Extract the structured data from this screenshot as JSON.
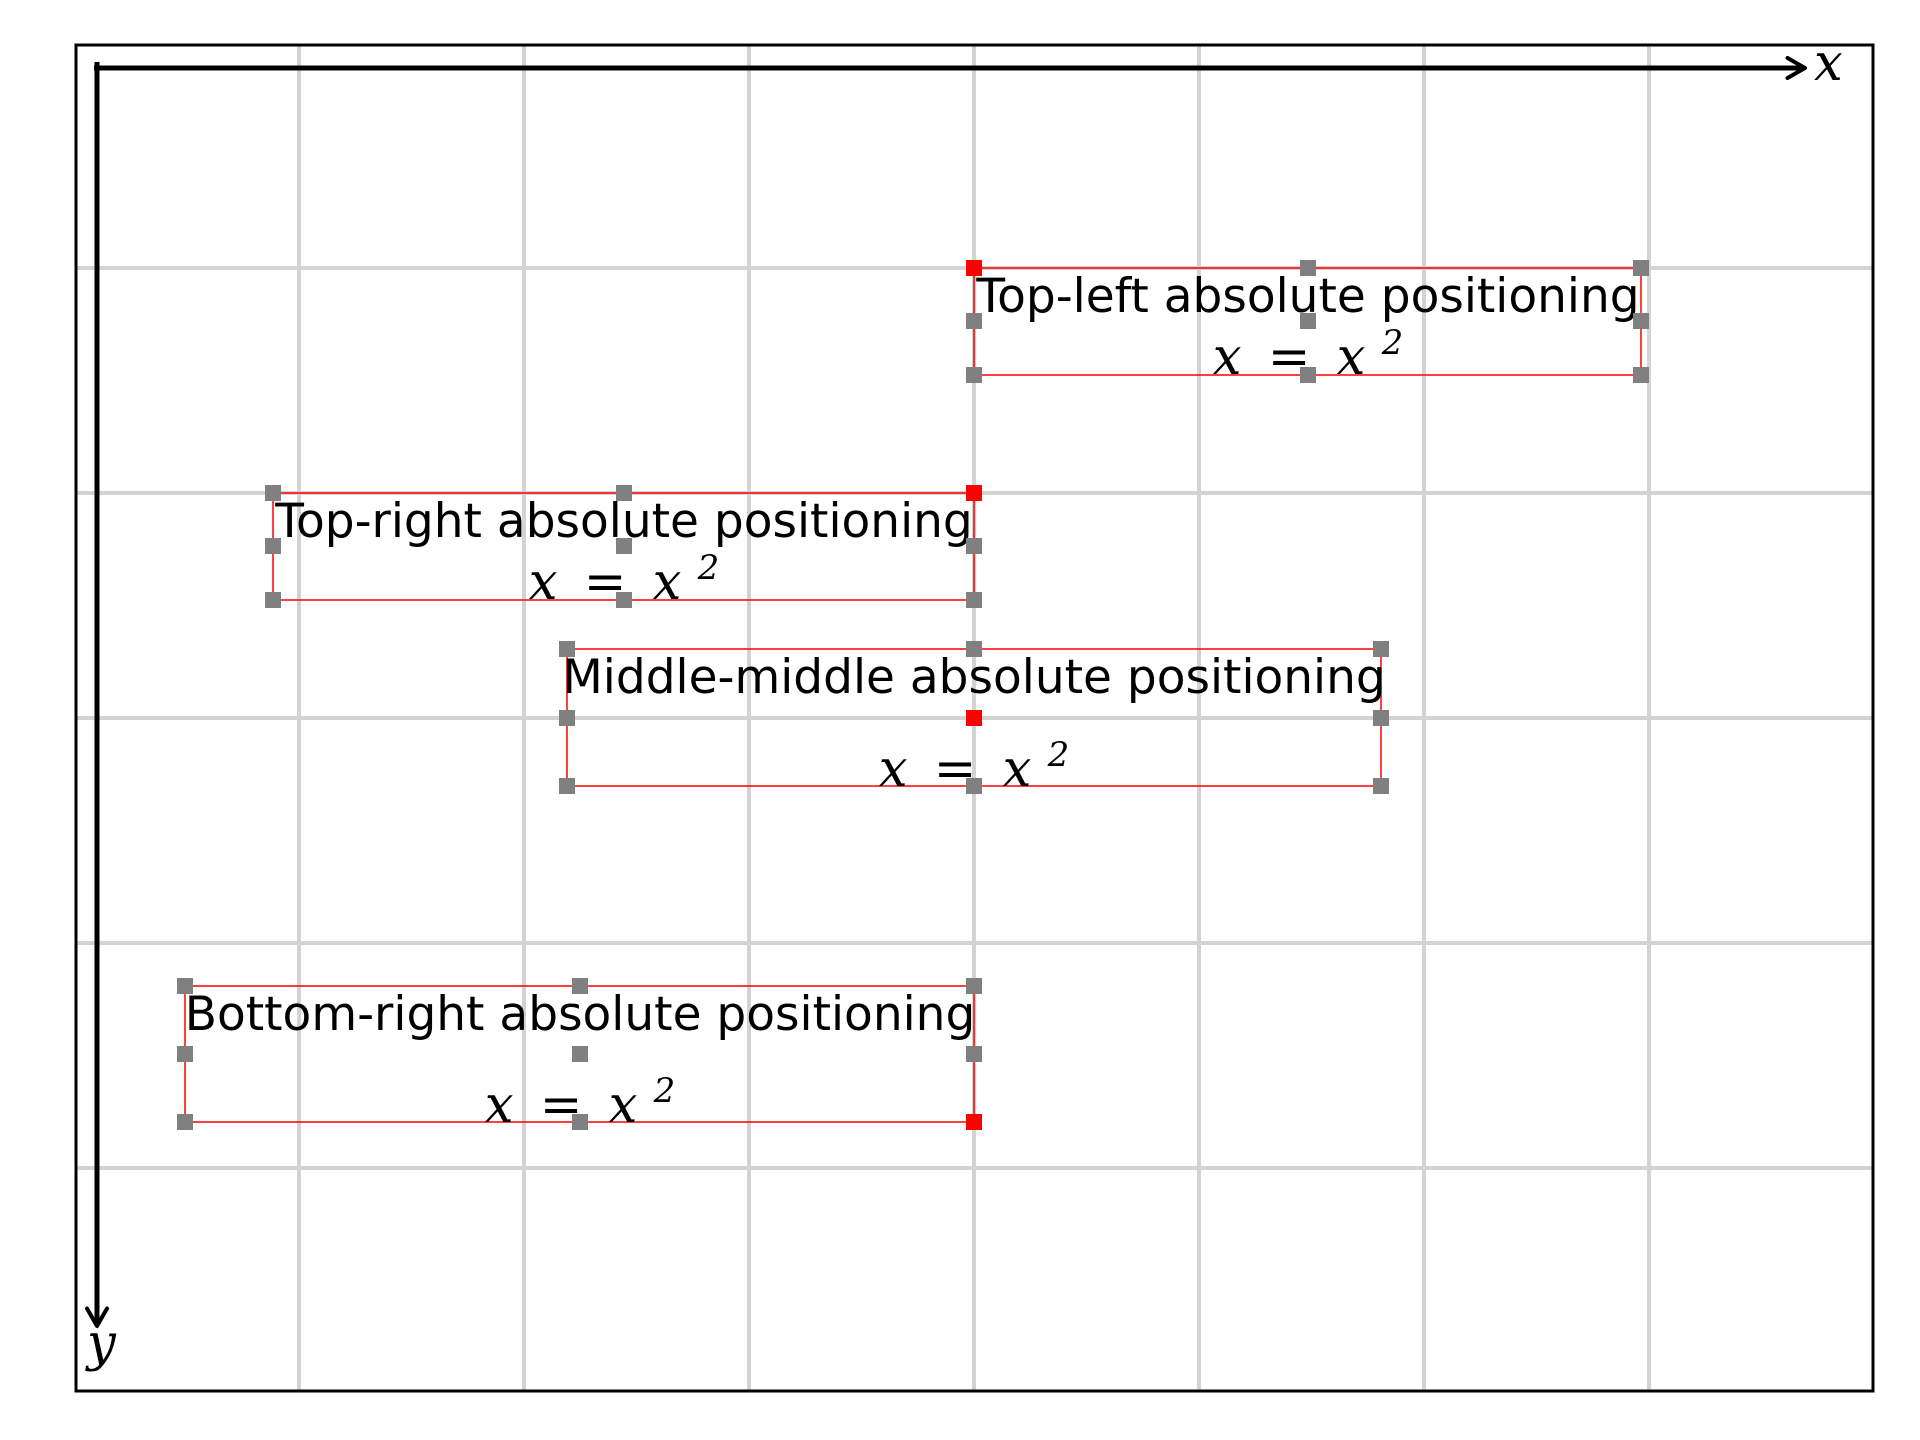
{
  "axes": {
    "x_label": "x",
    "y_label": "y"
  },
  "boxes": [
    {
      "id": "top-left",
      "title": "Top-left absolute positioning",
      "equation": {
        "lhs": "x",
        "eq": "=",
        "rhs": "x",
        "sup": "2"
      }
    },
    {
      "id": "top-right",
      "title": "Top-right absolute positioning",
      "equation": {
        "lhs": "x",
        "eq": "=",
        "rhs": "x",
        "sup": "2"
      }
    },
    {
      "id": "middle-middle",
      "title": "Middle-middle absolute positioning",
      "equation": {
        "lhs": "x",
        "eq": "=",
        "rhs": "x",
        "sup": "2"
      }
    },
    {
      "id": "bottom-right",
      "title": "Bottom-right absolute positioning",
      "equation": {
        "lhs": "x",
        "eq": "=",
        "rhs": "x",
        "sup": "2"
      }
    }
  ],
  "colors": {
    "grid": "#d3d3d3",
    "box_outline": "#ff0000",
    "anchor": "#ff0000",
    "handle": "#808080",
    "axis": "#000000"
  }
}
